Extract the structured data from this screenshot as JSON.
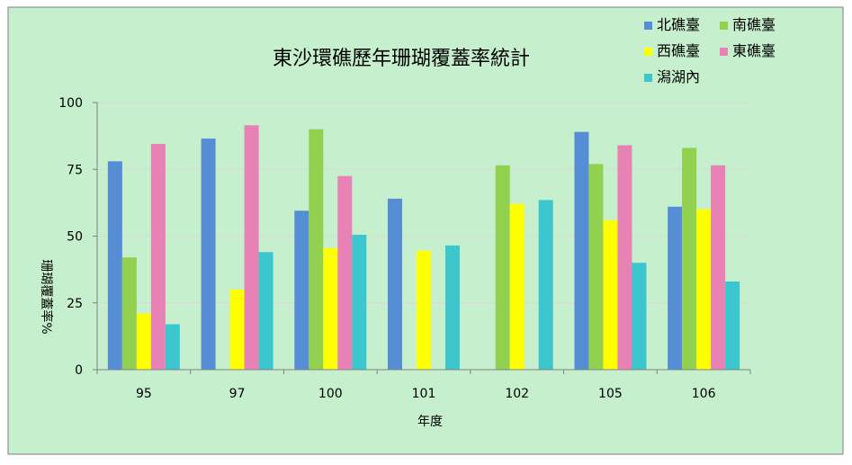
{
  "chart_data": {
    "type": "bar",
    "title": "東沙環礁歷年珊瑚覆蓋率統計",
    "xlabel": "年度",
    "ylabel": "珊瑚覆蓋率%",
    "categories": [
      "95",
      "97",
      "100",
      "101",
      "102",
      "105",
      "106"
    ],
    "ylim": [
      0,
      100
    ],
    "yticks": [
      0,
      25,
      50,
      75,
      100
    ],
    "grid": true,
    "legend_position": "top-right",
    "series": [
      {
        "name": "北礁臺",
        "color": "#558ED5",
        "values": [
          78,
          86.5,
          59.5,
          64,
          null,
          89,
          61
        ]
      },
      {
        "name": "南礁臺",
        "color": "#92D050",
        "values": [
          42,
          null,
          90,
          null,
          76.5,
          77,
          83
        ]
      },
      {
        "name": "西礁臺",
        "color": "#FFFF00",
        "values": [
          21,
          30,
          45.5,
          44.5,
          62,
          56,
          60
        ]
      },
      {
        "name": "東礁臺",
        "color": "#E881B4",
        "values": [
          84.5,
          91.5,
          72.5,
          null,
          null,
          84,
          76.5
        ]
      },
      {
        "name": "潟湖內",
        "color": "#3CC6CE",
        "values": [
          17,
          44,
          50.5,
          46.5,
          63.5,
          40,
          33
        ]
      }
    ]
  },
  "style": {
    "background": "#C6EFCE",
    "border": "#7F7F7F",
    "gridline": "#D9D9D9",
    "axis": "#808080",
    "text": "#000000"
  }
}
